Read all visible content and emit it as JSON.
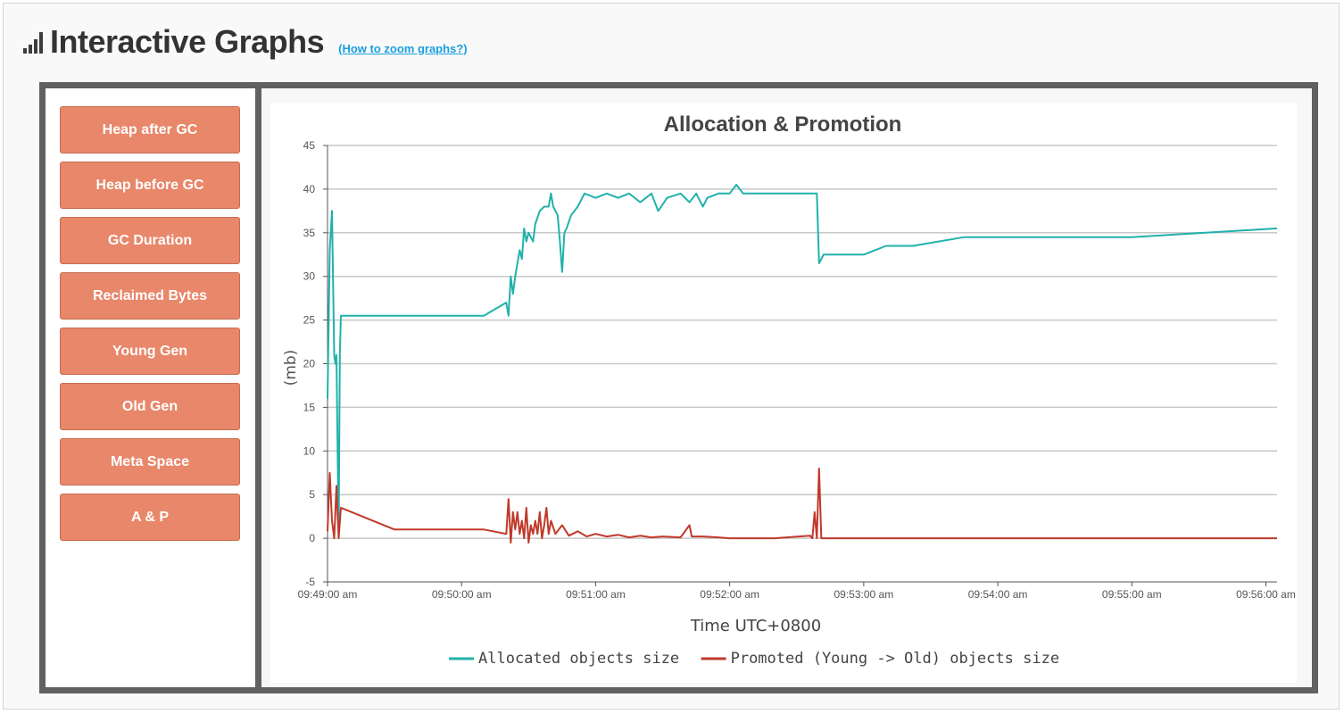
{
  "header": {
    "title": "Interactive Graphs",
    "zoom_link": "(How to zoom graphs?)"
  },
  "sidebar": {
    "items": [
      {
        "label": "Heap after GC"
      },
      {
        "label": "Heap before GC"
      },
      {
        "label": "GC Duration"
      },
      {
        "label": "Reclaimed Bytes"
      },
      {
        "label": "Young Gen"
      },
      {
        "label": "Old Gen"
      },
      {
        "label": "Meta Space"
      },
      {
        "label": "A & P"
      }
    ]
  },
  "colors": {
    "button_bg": "#e8876a",
    "allocated": "#20b2aa",
    "promoted": "#c0392b",
    "frame": "#616161"
  },
  "chart_data": {
    "type": "line",
    "title": "Allocation & Promotion",
    "xlabel": "Time UTC+0800",
    "ylabel": "(mb)",
    "x_ticks": [
      "09:49:00 am",
      "09:50:00 am",
      "09:51:00 am",
      "09:52:00 am",
      "09:53:00 am",
      "09:54:00 am",
      "09:55:00 am",
      "09:56:00 am"
    ],
    "y_ticks": [
      -5,
      0,
      5,
      10,
      15,
      20,
      25,
      30,
      35,
      40,
      45
    ],
    "ylim": [
      -5,
      45
    ],
    "xlim": [
      "09:49:00",
      "09:56:00"
    ],
    "grid": true,
    "legend_position": "bottom",
    "series": [
      {
        "name": "Allocated objects size",
        "color": "#20b2aa",
        "points": [
          [
            "09:49:00",
            16
          ],
          [
            "09:49:01",
            33
          ],
          [
            "09:49:02",
            37.5
          ],
          [
            "09:49:03",
            21
          ],
          [
            "09:49:03.5",
            20
          ],
          [
            "09:49:04",
            21
          ],
          [
            "09:49:05",
            0.5
          ],
          [
            "09:49:05.5",
            21
          ],
          [
            "09:49:06",
            25.5
          ],
          [
            "09:49:30",
            25.5
          ],
          [
            "09:50:00",
            25.5
          ],
          [
            "09:50:10",
            25.5
          ],
          [
            "09:50:20",
            27
          ],
          [
            "09:50:21",
            25.5
          ],
          [
            "09:50:22",
            30
          ],
          [
            "09:50:23",
            28
          ],
          [
            "09:50:24",
            30
          ],
          [
            "09:50:26",
            33
          ],
          [
            "09:50:27",
            32
          ],
          [
            "09:50:28",
            35.5
          ],
          [
            "09:50:29",
            34
          ],
          [
            "09:50:30",
            35
          ],
          [
            "09:50:32",
            34
          ],
          [
            "09:50:33",
            36
          ],
          [
            "09:50:35",
            37.5
          ],
          [
            "09:50:37",
            38
          ],
          [
            "09:50:39",
            38
          ],
          [
            "09:50:40",
            39.5
          ],
          [
            "09:50:41",
            38
          ],
          [
            "09:50:43",
            37
          ],
          [
            "09:50:44",
            34
          ],
          [
            "09:50:45",
            30.5
          ],
          [
            "09:50:46",
            35
          ],
          [
            "09:50:47",
            35.5
          ],
          [
            "09:50:49",
            37
          ],
          [
            "09:50:52",
            38
          ],
          [
            "09:50:55",
            39.5
          ],
          [
            "09:51:00",
            39
          ],
          [
            "09:51:05",
            39.5
          ],
          [
            "09:51:10",
            39
          ],
          [
            "09:51:15",
            39.5
          ],
          [
            "09:51:20",
            38.5
          ],
          [
            "09:51:25",
            39.5
          ],
          [
            "09:51:28",
            37.5
          ],
          [
            "09:51:32",
            39
          ],
          [
            "09:51:38",
            39.5
          ],
          [
            "09:51:42",
            38.5
          ],
          [
            "09:51:45",
            39.5
          ],
          [
            "09:51:48",
            38
          ],
          [
            "09:51:50",
            39
          ],
          [
            "09:51:55",
            39.5
          ],
          [
            "09:52:00",
            39.5
          ],
          [
            "09:52:03",
            40.5
          ],
          [
            "09:52:06",
            39.5
          ],
          [
            "09:52:10",
            39.5
          ],
          [
            "09:52:20",
            39.5
          ],
          [
            "09:52:30",
            39.5
          ],
          [
            "09:52:39",
            39.5
          ],
          [
            "09:52:40",
            31.5
          ],
          [
            "09:52:42",
            32.5
          ],
          [
            "09:53:00",
            32.5
          ],
          [
            "09:53:10",
            33.5
          ],
          [
            "09:53:22",
            33.5
          ],
          [
            "09:53:45",
            34.5
          ],
          [
            "09:54:30",
            34.5
          ],
          [
            "09:55:00",
            34.5
          ],
          [
            "09:56:05",
            35.5
          ]
        ]
      },
      {
        "name": "Promoted (Young -> Old) objects size",
        "color": "#c0392b",
        "points": [
          [
            "09:49:00",
            0.8
          ],
          [
            "09:49:01",
            7.5
          ],
          [
            "09:49:02",
            2
          ],
          [
            "09:49:03",
            0
          ],
          [
            "09:49:04",
            6
          ],
          [
            "09:49:05",
            0
          ],
          [
            "09:49:06",
            3.5
          ],
          [
            "09:49:30",
            1
          ],
          [
            "09:50:00",
            1
          ],
          [
            "09:50:10",
            1
          ],
          [
            "09:50:20",
            0.5
          ],
          [
            "09:50:21",
            4.5
          ],
          [
            "09:50:22",
            -0.5
          ],
          [
            "09:50:23",
            3
          ],
          [
            "09:50:24",
            1
          ],
          [
            "09:50:25",
            3
          ],
          [
            "09:50:26",
            0.5
          ],
          [
            "09:50:27",
            2
          ],
          [
            "09:50:28",
            0
          ],
          [
            "09:50:29",
            3.5
          ],
          [
            "09:50:30",
            -0.5
          ],
          [
            "09:50:31",
            1.5
          ],
          [
            "09:50:32",
            0.5
          ],
          [
            "09:50:33",
            2
          ],
          [
            "09:50:34",
            0.5
          ],
          [
            "09:50:35",
            3
          ],
          [
            "09:50:36",
            0
          ],
          [
            "09:50:37",
            1.5
          ],
          [
            "09:50:38",
            3.5
          ],
          [
            "09:50:39",
            0.5
          ],
          [
            "09:50:40",
            2
          ],
          [
            "09:50:42",
            0.5
          ],
          [
            "09:50:45",
            1.5
          ],
          [
            "09:50:48",
            0.3
          ],
          [
            "09:50:52",
            0.8
          ],
          [
            "09:50:56",
            0.2
          ],
          [
            "09:51:00",
            0.5
          ],
          [
            "09:51:05",
            0.2
          ],
          [
            "09:51:10",
            0.4
          ],
          [
            "09:51:15",
            0.1
          ],
          [
            "09:51:20",
            0.3
          ],
          [
            "09:51:25",
            0.1
          ],
          [
            "09:51:30",
            0.2
          ],
          [
            "09:51:38",
            0.1
          ],
          [
            "09:51:42",
            1.5
          ],
          [
            "09:51:43",
            0.2
          ],
          [
            "09:51:48",
            0.2
          ],
          [
            "09:51:55",
            0.1
          ],
          [
            "09:52:00",
            0
          ],
          [
            "09:52:20",
            0
          ],
          [
            "09:52:36",
            0.3
          ],
          [
            "09:52:37",
            0
          ],
          [
            "09:52:38",
            3
          ],
          [
            "09:52:39",
            0
          ],
          [
            "09:52:40",
            8
          ],
          [
            "09:52:41",
            0
          ],
          [
            "09:53:00",
            0
          ],
          [
            "09:54:00",
            0
          ],
          [
            "09:55:00",
            0
          ],
          [
            "09:56:05",
            0
          ]
        ]
      }
    ]
  }
}
